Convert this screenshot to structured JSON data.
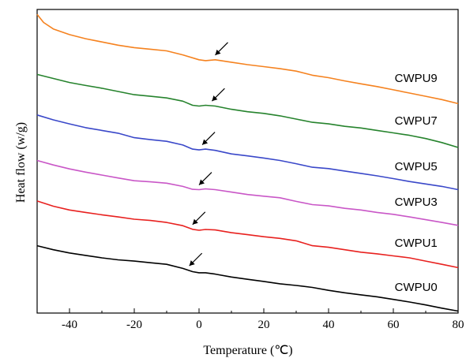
{
  "chart_data": {
    "type": "line",
    "xlabel": "Temperature (℃)",
    "ylabel": "Heat flow (w/g)",
    "xlim": [
      -50,
      80
    ],
    "xticks": [
      -40,
      -20,
      0,
      20,
      40,
      60,
      80
    ],
    "y_ticks_labeled": false,
    "grid": false,
    "legend": "labels placed beside each curve",
    "annotations": "arrow marking the transition on each curve",
    "series": [
      {
        "name": "CWPU0",
        "color": "#000000",
        "points": [
          [
            -50,
            -0.005
          ],
          [
            -45,
            -0.03
          ],
          [
            -40,
            -0.05
          ],
          [
            -35,
            -0.065
          ],
          [
            -30,
            -0.08
          ],
          [
            -25,
            -0.092
          ],
          [
            -20,
            -0.1
          ],
          [
            -15,
            -0.11
          ],
          [
            -10,
            -0.12
          ],
          [
            -5,
            -0.145
          ],
          [
            -2,
            -0.165
          ],
          [
            0,
            -0.172
          ],
          [
            2,
            -0.172
          ],
          [
            5,
            -0.18
          ],
          [
            10,
            -0.198
          ],
          [
            15,
            -0.212
          ],
          [
            20,
            -0.225
          ],
          [
            25,
            -0.24
          ],
          [
            30,
            -0.25
          ],
          [
            35,
            -0.262
          ],
          [
            40,
            -0.28
          ],
          [
            45,
            -0.295
          ],
          [
            50,
            -0.308
          ],
          [
            55,
            -0.32
          ],
          [
            60,
            -0.336
          ],
          [
            65,
            -0.352
          ],
          [
            70,
            -0.37
          ],
          [
            75,
            -0.39
          ],
          [
            80,
            -0.408
          ]
        ]
      },
      {
        "name": "CWPU1",
        "color": "#e8211f",
        "points": [
          [
            -50,
            0.27
          ],
          [
            -45,
            0.238
          ],
          [
            -40,
            0.215
          ],
          [
            -35,
            0.2
          ],
          [
            -30,
            0.185
          ],
          [
            -25,
            0.172
          ],
          [
            -20,
            0.158
          ],
          [
            -15,
            0.15
          ],
          [
            -10,
            0.138
          ],
          [
            -5,
            0.118
          ],
          [
            -2,
            0.096
          ],
          [
            0,
            0.09
          ],
          [
            2,
            0.095
          ],
          [
            5,
            0.092
          ],
          [
            10,
            0.075
          ],
          [
            15,
            0.063
          ],
          [
            20,
            0.05
          ],
          [
            25,
            0.04
          ],
          [
            30,
            0.025
          ],
          [
            35,
            -0.005
          ],
          [
            40,
            -0.015
          ],
          [
            45,
            -0.03
          ],
          [
            50,
            -0.045
          ],
          [
            55,
            -0.055
          ],
          [
            60,
            -0.068
          ],
          [
            65,
            -0.08
          ],
          [
            70,
            -0.1
          ],
          [
            75,
            -0.12
          ],
          [
            80,
            -0.14
          ]
        ]
      },
      {
        "name": "CWPU3",
        "color": "#c957c7",
        "points": [
          [
            -50,
            0.52
          ],
          [
            -45,
            0.492
          ],
          [
            -40,
            0.468
          ],
          [
            -35,
            0.448
          ],
          [
            -30,
            0.43
          ],
          [
            -25,
            0.412
          ],
          [
            -20,
            0.395
          ],
          [
            -15,
            0.388
          ],
          [
            -10,
            0.38
          ],
          [
            -5,
            0.36
          ],
          [
            -2,
            0.342
          ],
          [
            0,
            0.34
          ],
          [
            2,
            0.345
          ],
          [
            5,
            0.34
          ],
          [
            10,
            0.325
          ],
          [
            15,
            0.31
          ],
          [
            20,
            0.3
          ],
          [
            25,
            0.29
          ],
          [
            30,
            0.268
          ],
          [
            35,
            0.248
          ],
          [
            40,
            0.24
          ],
          [
            45,
            0.225
          ],
          [
            50,
            0.215
          ],
          [
            55,
            0.2
          ],
          [
            60,
            0.188
          ],
          [
            65,
            0.172
          ],
          [
            70,
            0.155
          ],
          [
            75,
            0.138
          ],
          [
            80,
            0.12
          ]
        ]
      },
      {
        "name": "CWPU5",
        "color": "#3a48c9",
        "points": [
          [
            -50,
            0.8
          ],
          [
            -45,
            0.77
          ],
          [
            -40,
            0.745
          ],
          [
            -35,
            0.722
          ],
          [
            -30,
            0.705
          ],
          [
            -25,
            0.688
          ],
          [
            -20,
            0.66
          ],
          [
            -15,
            0.648
          ],
          [
            -10,
            0.638
          ],
          [
            -5,
            0.615
          ],
          [
            -2,
            0.59
          ],
          [
            0,
            0.585
          ],
          [
            2,
            0.59
          ],
          [
            5,
            0.582
          ],
          [
            10,
            0.56
          ],
          [
            15,
            0.548
          ],
          [
            20,
            0.535
          ],
          [
            25,
            0.52
          ],
          [
            30,
            0.5
          ],
          [
            35,
            0.478
          ],
          [
            40,
            0.47
          ],
          [
            45,
            0.455
          ],
          [
            50,
            0.44
          ],
          [
            55,
            0.425
          ],
          [
            60,
            0.408
          ],
          [
            65,
            0.39
          ],
          [
            70,
            0.375
          ],
          [
            75,
            0.36
          ],
          [
            80,
            0.34
          ]
        ]
      },
      {
        "name": "CWPU7",
        "color": "#26832d",
        "points": [
          [
            -50,
            1.05
          ],
          [
            -45,
            1.025
          ],
          [
            -40,
            1.0
          ],
          [
            -35,
            0.982
          ],
          [
            -30,
            0.965
          ],
          [
            -25,
            0.945
          ],
          [
            -20,
            0.925
          ],
          [
            -15,
            0.915
          ],
          [
            -10,
            0.905
          ],
          [
            -5,
            0.885
          ],
          [
            -2,
            0.86
          ],
          [
            0,
            0.855
          ],
          [
            2,
            0.86
          ],
          [
            5,
            0.855
          ],
          [
            10,
            0.835
          ],
          [
            15,
            0.82
          ],
          [
            20,
            0.81
          ],
          [
            25,
            0.795
          ],
          [
            30,
            0.775
          ],
          [
            35,
            0.755
          ],
          [
            40,
            0.745
          ],
          [
            45,
            0.73
          ],
          [
            50,
            0.72
          ],
          [
            55,
            0.705
          ],
          [
            60,
            0.69
          ],
          [
            65,
            0.675
          ],
          [
            70,
            0.655
          ],
          [
            75,
            0.63
          ],
          [
            80,
            0.6
          ]
        ]
      },
      {
        "name": "CWPU9",
        "color": "#f5821f",
        "points": [
          [
            -50,
            1.42
          ],
          [
            -48,
            1.37
          ],
          [
            -45,
            1.33
          ],
          [
            -40,
            1.295
          ],
          [
            -35,
            1.27
          ],
          [
            -30,
            1.25
          ],
          [
            -25,
            1.23
          ],
          [
            -20,
            1.215
          ],
          [
            -15,
            1.205
          ],
          [
            -10,
            1.195
          ],
          [
            -5,
            1.17
          ],
          [
            0,
            1.14
          ],
          [
            2,
            1.135
          ],
          [
            5,
            1.14
          ],
          [
            10,
            1.125
          ],
          [
            15,
            1.11
          ],
          [
            20,
            1.098
          ],
          [
            25,
            1.085
          ],
          [
            30,
            1.07
          ],
          [
            35,
            1.045
          ],
          [
            40,
            1.03
          ],
          [
            45,
            1.01
          ],
          [
            50,
            0.992
          ],
          [
            55,
            0.975
          ],
          [
            60,
            0.955
          ],
          [
            65,
            0.935
          ],
          [
            70,
            0.915
          ],
          [
            75,
            0.895
          ],
          [
            80,
            0.87
          ]
        ]
      }
    ],
    "arrows": [
      {
        "series": "CWPU0",
        "x": -3
      },
      {
        "series": "CWPU1",
        "x": -2
      },
      {
        "series": "CWPU3",
        "x": 0
      },
      {
        "series": "CWPU5",
        "x": 1
      },
      {
        "series": "CWPU7",
        "x": 4
      },
      {
        "series": "CWPU9",
        "x": 5
      }
    ]
  }
}
